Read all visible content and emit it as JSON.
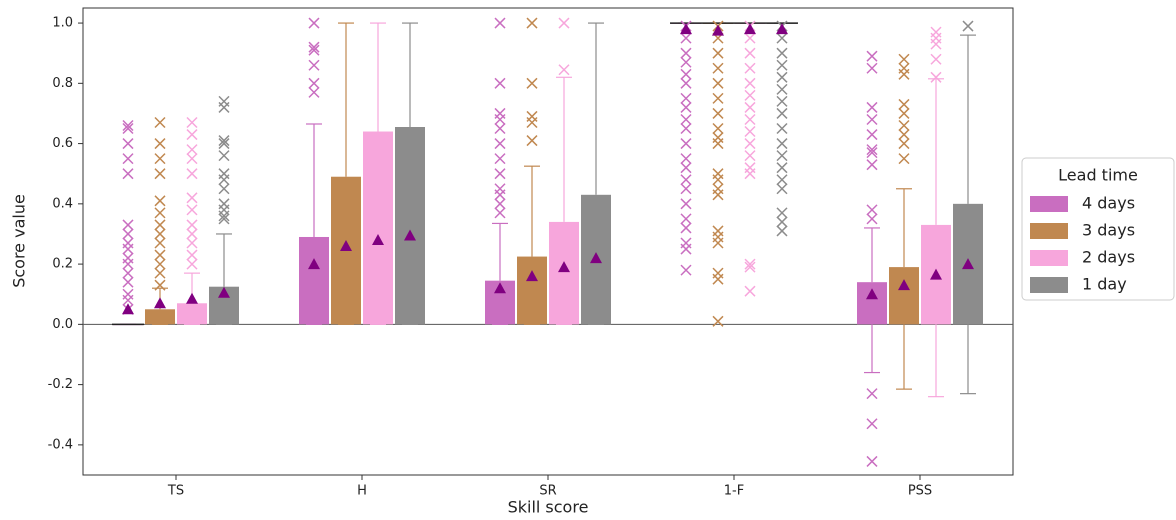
{
  "chart_data": {
    "type": "box",
    "x_label": "Skill score",
    "y_label": "Score value",
    "categories": [
      "TS",
      "H",
      "SR",
      "1-F",
      "PSS"
    ],
    "ylim": [
      -0.5,
      1.05
    ],
    "yticks": [
      -0.4,
      -0.2,
      {
        "value": 0,
        "label": "0.0"
      },
      0.2,
      0.4,
      0.6,
      0.8,
      {
        "value": 1,
        "label": "1.0"
      }
    ],
    "legend_title": "Lead time",
    "legend_position": "right",
    "mean_color": "#800080",
    "series": [
      {
        "name": "4 days",
        "color": "#c96ec0",
        "q1": [
          0,
          0,
          0,
          1,
          0
        ],
        "q3": [
          0,
          0.29,
          0.145,
          1,
          0.14
        ],
        "whisker_low": [
          0,
          0,
          0,
          1,
          -0.16
        ],
        "whisker_high": [
          0,
          0.665,
          0.335,
          1,
          0.32
        ],
        "means": [
          0.05,
          0.2,
          0.12,
          0.98,
          0.1
        ],
        "outliers": [
          [
            0.66,
            0.65,
            0.6,
            0.55,
            0.5,
            0.33,
            0.3,
            0.27,
            0.25,
            0.22,
            0.2,
            0.17,
            0.14,
            0.1,
            0.08,
            0.05
          ],
          [
            1,
            0.92,
            0.91,
            0.86,
            0.8,
            0.77
          ],
          [
            1,
            0.8,
            0.7,
            0.68,
            0.65,
            0.6,
            0.55,
            0.5,
            0.45,
            0.43,
            0.4,
            0.37
          ],
          [
            0.99,
            0.95,
            0.9,
            0.87,
            0.83,
            0.8,
            0.75,
            0.72,
            0.68,
            0.65,
            0.6,
            0.55,
            0.52,
            0.48,
            0.45,
            0.4,
            0.35,
            0.32,
            0.27,
            0.25,
            0.18
          ],
          [
            0.89,
            0.85,
            0.72,
            0.68,
            0.63,
            0.58,
            0.57,
            0.53,
            0.38,
            0.35,
            -0.23,
            -0.33,
            -0.455
          ]
        ]
      },
      {
        "name": "3 days",
        "color": "#c08850",
        "q1": [
          0,
          0,
          0,
          1,
          0
        ],
        "q3": [
          0.05,
          0.49,
          0.225,
          1,
          0.19
        ],
        "whisker_low": [
          0,
          0,
          0,
          1,
          -0.215
        ],
        "whisker_high": [
          0.12,
          1,
          0.525,
          1,
          0.45
        ],
        "means": [
          0.07,
          0.26,
          0.16,
          0.975,
          0.13
        ],
        "outliers": [
          [
            0.67,
            0.6,
            0.55,
            0.5,
            0.41,
            0.37,
            0.33,
            0.3,
            0.27,
            0.23,
            0.2,
            0.17,
            0.13
          ],
          [],
          [
            1,
            0.8,
            0.69,
            0.67,
            0.61
          ],
          [
            0.99,
            0.95,
            0.9,
            0.85,
            0.8,
            0.75,
            0.7,
            0.65,
            0.62,
            0.6,
            0.5,
            0.48,
            0.45,
            0.43,
            0.31,
            0.29,
            0.27,
            0.17,
            0.15,
            0.01
          ],
          [
            0.88,
            0.85,
            0.83,
            0.73,
            0.7,
            0.66,
            0.63,
            0.6,
            0.55
          ]
        ]
      },
      {
        "name": "2 days",
        "color": "#f7a6dc",
        "q1": [
          0,
          0,
          0,
          1,
          0
        ],
        "q3": [
          0.07,
          0.64,
          0.34,
          1,
          0.33
        ],
        "whisker_low": [
          0,
          0,
          0,
          1,
          -0.24
        ],
        "whisker_high": [
          0.17,
          1,
          0.82,
          1,
          0.815
        ],
        "means": [
          0.085,
          0.28,
          0.19,
          0.98,
          0.165
        ],
        "outliers": [
          [
            0.67,
            0.63,
            0.58,
            0.55,
            0.5,
            0.42,
            0.38,
            0.33,
            0.3,
            0.27,
            0.23,
            0.2
          ],
          [],
          [
            1,
            0.845
          ],
          [
            0.99,
            0.95,
            0.9,
            0.85,
            0.8,
            0.76,
            0.72,
            0.68,
            0.64,
            0.6,
            0.56,
            0.52,
            0.5,
            0.2,
            0.19,
            0.11
          ],
          [
            0.97,
            0.95,
            0.93,
            0.88,
            0.82
          ]
        ]
      },
      {
        "name": "1 day",
        "color": "#8c8c8c",
        "q1": [
          0,
          0,
          0,
          1,
          0
        ],
        "q3": [
          0.125,
          0.655,
          0.43,
          1,
          0.4
        ],
        "whisker_low": [
          0,
          0,
          0,
          1,
          -0.23
        ],
        "whisker_high": [
          0.3,
          1,
          1,
          1,
          0.96
        ],
        "means": [
          0.105,
          0.295,
          0.22,
          0.98,
          0.2
        ],
        "outliers": [
          [
            0.74,
            0.72,
            0.61,
            0.6,
            0.56,
            0.5,
            0.48,
            0.45,
            0.4,
            0.38,
            0.36,
            0.35
          ],
          [],
          [],
          [
            0.99,
            0.95,
            0.9,
            0.86,
            0.82,
            0.78,
            0.74,
            0.7,
            0.65,
            0.6,
            0.56,
            0.52,
            0.48,
            0.45,
            0.37,
            0.34,
            0.31
          ],
          [
            0.99
          ]
        ]
      }
    ]
  }
}
